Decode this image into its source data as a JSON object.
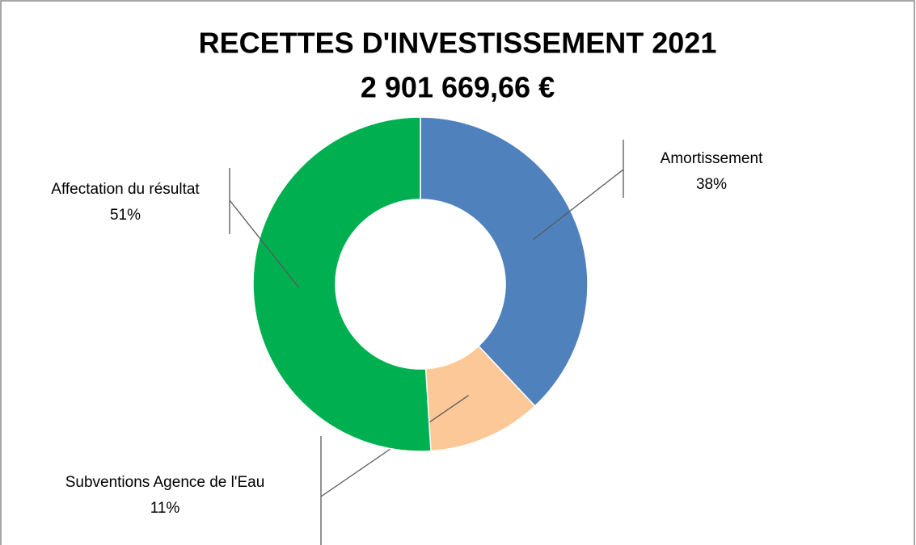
{
  "chart_data": {
    "type": "donut",
    "title": "RECETTES D'INVESTISSEMENT 2021",
    "subtitle": "2 901 669,66 €",
    "categories": [
      "Amortissement",
      "Subventions Agence de l'Eau",
      "Affectation du résultat"
    ],
    "values": [
      38,
      11,
      51
    ],
    "value_labels": [
      "38%",
      "11%",
      "51%"
    ],
    "colors": [
      "#4f81bd",
      "#fcc897",
      "#00b050"
    ]
  }
}
